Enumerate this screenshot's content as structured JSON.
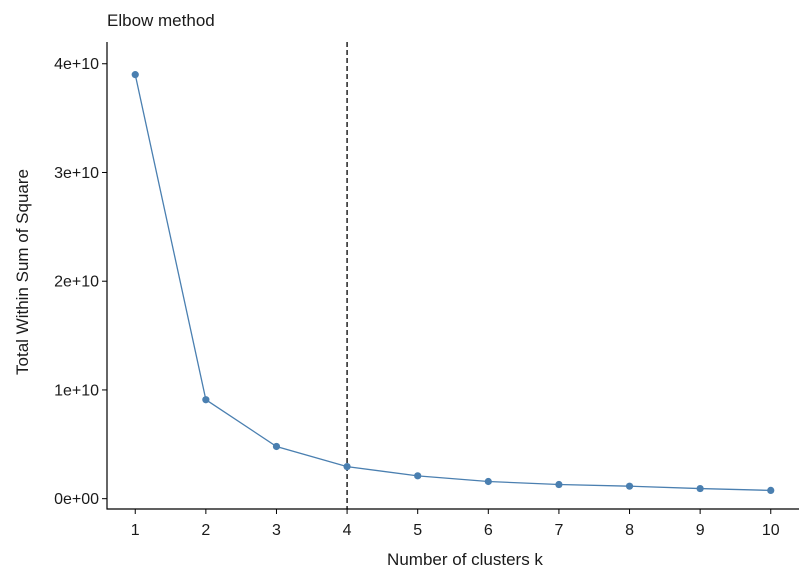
{
  "chart_data": {
    "type": "line",
    "title": "Elbow method",
    "xlabel": "Number of clusters k",
    "ylabel": "Total Within Sum of Square",
    "x": [
      1,
      2,
      3,
      4,
      5,
      6,
      7,
      8,
      9,
      10
    ],
    "x_tick_labels": [
      "1",
      "2",
      "3",
      "4",
      "5",
      "6",
      "7",
      "8",
      "9",
      "10"
    ],
    "series": [
      {
        "values": [
          39000000000,
          9100000000,
          4800000000,
          2950000000,
          2100000000,
          1580000000,
          1300000000,
          1150000000,
          930000000,
          760000000
        ],
        "color": "#4a7fb0"
      }
    ],
    "y_ticks": [
      0,
      10000000000,
      20000000000,
      30000000000,
      40000000000
    ],
    "y_tick_labels": [
      "0e+00",
      "1e+10",
      "2e+10",
      "3e+10",
      "4e+10"
    ],
    "xlim": [
      0.6,
      10.4
    ],
    "ylim": [
      -950000000,
      42000000000
    ],
    "reference_line": {
      "x": 4,
      "style": "dashed",
      "color": "#000000"
    },
    "grid": false,
    "legend": "none"
  }
}
